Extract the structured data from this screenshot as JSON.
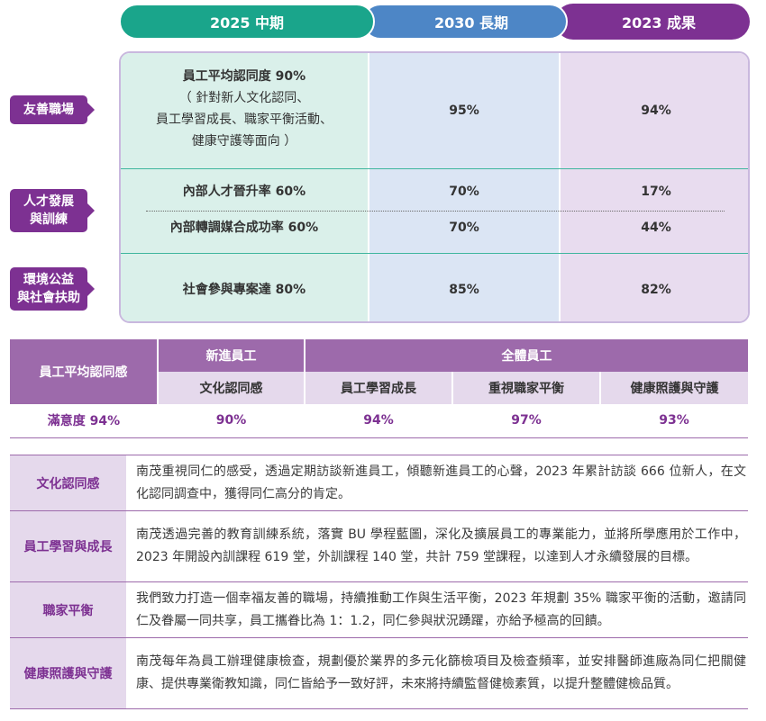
{
  "tabs": [
    "2025 中期",
    "2030 長期",
    "2023 成果"
  ],
  "colors": {
    "green": "#1aa58b",
    "blue": "#4d86c6",
    "purple": "#7d3192"
  },
  "categories": [
    {
      "label_lines": [
        "友善職場"
      ]
    },
    {
      "label_lines": [
        "人才發展",
        "與訓練"
      ]
    },
    {
      "label_lines": [
        "環境公益",
        "與社會扶助"
      ]
    }
  ],
  "goals": {
    "row1": {
      "title": "員工平均認同度 90%",
      "detail_lines": [
        "（ 針對新人文化認同、",
        "員工學習成長、職家平衡活動、",
        "健康守護等面向 ）"
      ],
      "target_2030": "95%",
      "result_2023": "94%"
    },
    "row2a": {
      "title": "內部人才晉升率 60%",
      "target_2030": "70%",
      "result_2023": "17%"
    },
    "row2b": {
      "title": "內部轉調媒合成功率 60%",
      "target_2030": "70%",
      "result_2023": "44%"
    },
    "row3": {
      "title": "社會參與專案達 80%",
      "target_2030": "85%",
      "result_2023": "82%"
    }
  },
  "satisfaction": {
    "row_header": "員工平均認同感",
    "group_new": "新進員工",
    "group_all": "全體員工",
    "sub_headers": [
      "文化認同感",
      "員工學習成長",
      "重視職家平衡",
      "健康照護與守護"
    ],
    "overall": "滿意度 94%",
    "values": [
      "90%",
      "94%",
      "97%",
      "93%"
    ]
  },
  "descriptions": [
    {
      "key": "文化認同感",
      "text": "南茂重視同仁的感受，透過定期訪談新進員工，傾聽新進員工的心聲，2023 年累計訪談 666 位新人，在文化認同調查中，獲得同仁高分的肯定。"
    },
    {
      "key": "員工學習與成長",
      "text": "南茂透過完善的教育訓練系統，落實 BU 學程藍圖，深化及擴展員工的專業能力，並將所學應用於工作中，2023 年開設內訓課程 619 堂，外訓課程 140 堂，共計 759 堂課程，以達到人才永續發展的目標。"
    },
    {
      "key": "職家平衡",
      "text": "我們致力打造一個幸福友善的職場，持續推動工作與生活平衡，2023 年規劃 35% 職家平衡的活動，邀請同仁及眷屬一同共享，員工攜眷比為 1：1.2，同仁參與狀況踴躍，亦給予極高的回饋。"
    },
    {
      "key": "健康照護與守護",
      "text": "南茂每年為員工辦理健康檢查，規劃優於業界的多元化篩檢項目及檢查頻率，並安排醫師進廠為同仁把關健康、提供專業衛教知識，同仁皆給予一致好評，未來將持續監督健檢素質，以提升整體健檢品質。"
    }
  ]
}
